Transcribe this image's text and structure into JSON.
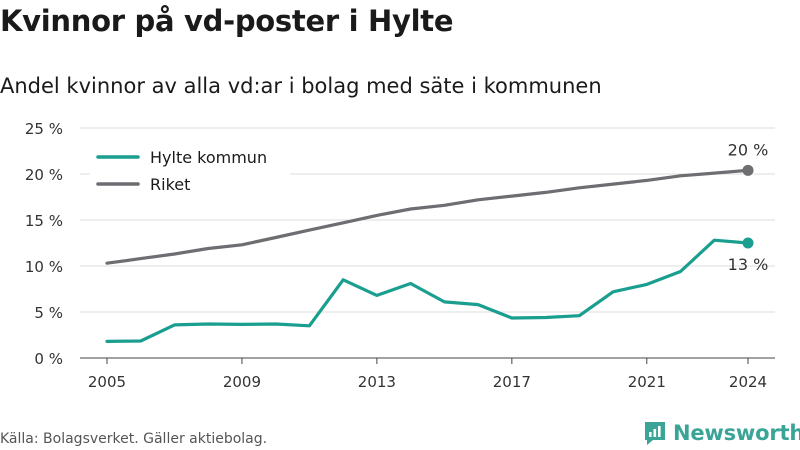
{
  "title": "Kvinnor på vd-poster i Hylte",
  "subtitle": "Andel kvinnor av alla vd:ar i bolag med säte i kommunen",
  "source": "Källa: Bolagsverket. Gäller aktiebolag.",
  "brand": {
    "name": "Newsworthy",
    "icon": "newsworthy-logo-icon",
    "color": "#3aa597"
  },
  "chart_data": {
    "type": "line",
    "title": "",
    "xlabel": "",
    "ylabel": "",
    "x": [
      2005,
      2006,
      2007,
      2008,
      2009,
      2010,
      2011,
      2012,
      2013,
      2014,
      2015,
      2016,
      2017,
      2018,
      2019,
      2020,
      2021,
      2022,
      2023,
      2024
    ],
    "xlim": [
      2004.2,
      2024.8
    ],
    "ylim": [
      0,
      25
    ],
    "grid": true,
    "legend_position": "top-left",
    "x_ticks": [
      "2005",
      "2009",
      "2013",
      "2017",
      "2021",
      "2024"
    ],
    "y_ticks": [
      "0 %",
      "5 %",
      "10 %",
      "15 %",
      "20 %",
      "25 %"
    ],
    "series": [
      {
        "name": "Hylte kommun",
        "color": "#1a9e8f",
        "values": [
          1.8,
          1.85,
          3.6,
          3.7,
          3.65,
          3.7,
          3.5,
          8.5,
          6.8,
          8.1,
          6.1,
          5.8,
          4.35,
          4.4,
          4.6,
          7.2,
          8.0,
          9.4,
          12.8,
          12.5
        ],
        "end_label": "13 %"
      },
      {
        "name": "Riket",
        "color": "#6d6d72",
        "values": [
          10.3,
          10.8,
          11.3,
          11.9,
          12.3,
          13.1,
          13.9,
          14.7,
          15.5,
          16.2,
          16.6,
          17.2,
          17.6,
          18.0,
          18.5,
          18.9,
          19.3,
          19.8,
          20.1,
          20.4
        ],
        "end_label": "20 %"
      }
    ]
  }
}
